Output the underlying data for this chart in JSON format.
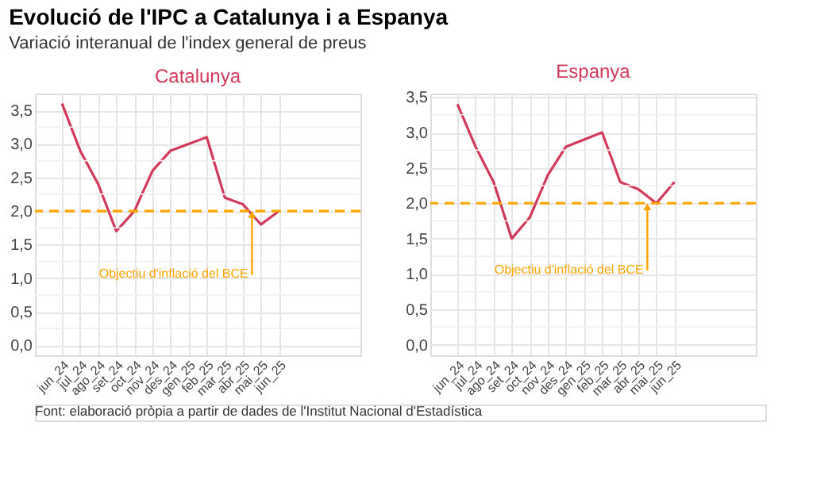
{
  "chart_data": [
    {
      "type": "line",
      "title": "Evolució de l'IPC a Catalunya i a Espanya",
      "subtitle": "Variació interanual de l'index general de preus",
      "annotations": [
        "Font: elaboració pròpia a partir de dades de l'Institut Nacional d'Estadística"
      ],
      "categories": [
        "jun_24",
        "jul_24",
        "ago_24",
        "set_24",
        "oct_24",
        "nov_24",
        "des_24",
        "gen_25",
        "feb_25",
        "mar_25",
        "abr_25",
        "mai_25",
        "jun_25"
      ],
      "series": [
        {
          "name": "Catalunya",
          "color": "#d13a5a",
          "values": [
            3.6,
            2.9,
            2.4,
            1.7,
            2.0,
            2.6,
            2.9,
            3.0,
            3.1,
            2.2,
            2.1,
            1.8,
            2.0
          ]
        }
      ],
      "ylim": [
        -0.15,
        3.75
      ],
      "yticks": [
        {
          "value": 0,
          "label": "0,0"
        },
        {
          "value": 0.5,
          "label": "0,5"
        },
        {
          "value": 1,
          "label": "1,0"
        },
        {
          "value": 1.5,
          "label": "1,5"
        },
        {
          "value": 2,
          "label": "2,0"
        },
        {
          "value": 2.5,
          "label": "2,5"
        },
        {
          "value": 3,
          "label": "3,0"
        },
        {
          "value": 3.5,
          "label": "3,5"
        }
      ],
      "grid": true,
      "line_style": "solid",
      "ref_lines": [
        {
          "axis": "y",
          "value": 2,
          "label": "Objectiu d'inflació del BCE",
          "color": "#ffa500",
          "line_style": "dashed"
        }
      ]
    },
    {
      "type": "line",
      "categories": [
        "jun_24",
        "jul_24",
        "ago_24",
        "set_24",
        "oct_24",
        "nov_24",
        "des_24",
        "gen_25",
        "feb_25",
        "mar_25",
        "abr_25",
        "mai_25",
        "jun_25"
      ],
      "series": [
        {
          "name": "Espanya",
          "color": "#d13a5a",
          "values": [
            3.4,
            2.8,
            2.3,
            1.5,
            1.8,
            2.4,
            2.8,
            2.9,
            3.0,
            2.3,
            2.2,
            2.0,
            2.3
          ]
        }
      ],
      "ylim": [
        -0.15,
        3.55
      ],
      "yticks": [
        {
          "value": 0,
          "label": "0,0"
        },
        {
          "value": 0.5,
          "label": "0,5"
        },
        {
          "value": 1,
          "label": "1,0"
        },
        {
          "value": 1.5,
          "label": "1,5"
        },
        {
          "value": 2,
          "label": "2,0"
        },
        {
          "value": 2.5,
          "label": "2,5"
        },
        {
          "value": 3,
          "label": "3,0"
        },
        {
          "value": 3.5,
          "label": "3,5"
        }
      ],
      "grid": true,
      "line_style": "solid",
      "ref_lines": [
        {
          "axis": "y",
          "value": 2,
          "label": "Objectiu d'inflació del BCE",
          "color": "#ffa500",
          "line_style": "dashed"
        }
      ]
    }
  ]
}
